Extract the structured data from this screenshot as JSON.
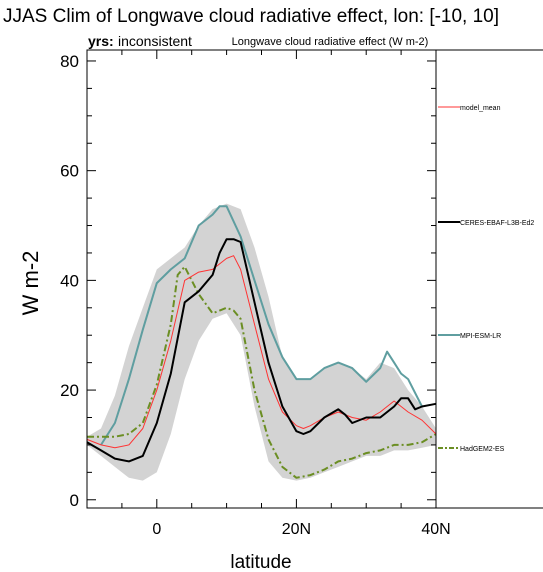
{
  "chart_data": {
    "type": "line",
    "title": "JJAS Clim of Longwave cloud radiative effect, lon: [-10, 10]",
    "subtitle_left_bold": "yrs:",
    "subtitle_left_rest": " inconsistent",
    "subtitle_center": "Longwave cloud radiative effect (W m-2)",
    "xlabel": "latitude",
    "ylabel": "W m-2",
    "xlim": [
      -10,
      40
    ],
    "ylim": [
      -1.5,
      82
    ],
    "x_ticks": [
      {
        "value": 0,
        "label": "0"
      },
      {
        "value": 20,
        "label": "20N"
      },
      {
        "value": 40,
        "label": "40N"
      }
    ],
    "y_ticks": [
      {
        "value": 0,
        "label": "0"
      },
      {
        "value": 20,
        "label": "20"
      },
      {
        "value": 40,
        "label": "40"
      },
      {
        "value": 60,
        "label": "60"
      },
      {
        "value": 80,
        "label": "80"
      }
    ],
    "grid": false,
    "legend_position": "right panel",
    "envelope": {
      "color": "#d3d3d3",
      "x": [
        -10,
        -8,
        -6,
        -4,
        -2,
        0,
        2,
        4,
        6,
        8,
        10,
        12,
        14,
        16,
        18,
        20,
        22,
        24,
        26,
        28,
        30,
        32,
        34,
        36,
        38,
        40
      ],
      "upper": [
        11.5,
        13,
        19,
        28,
        35,
        42,
        44,
        46,
        50,
        53,
        54,
        53,
        46,
        37,
        26,
        22,
        22,
        24,
        25,
        24,
        22,
        25,
        24,
        20,
        17,
        13
      ],
      "lower": [
        10,
        8,
        6,
        4,
        3.5,
        5,
        12,
        22,
        29,
        33,
        34,
        30,
        17,
        7,
        4,
        3.5,
        4,
        5,
        6,
        7,
        8,
        8,
        9,
        9,
        9.5,
        10
      ]
    },
    "series": [
      {
        "name": "model_mean",
        "color": "#ff3333",
        "dash": "solid",
        "width": 1,
        "x": [
          -10,
          -8,
          -6,
          -4,
          -2,
          0,
          2,
          4,
          6,
          8,
          10,
          11,
          12,
          14,
          16,
          18,
          20,
          21,
          22,
          24,
          26,
          28,
          30,
          32,
          34,
          36,
          38,
          40
        ],
        "y": [
          11,
          10,
          9.5,
          10,
          13,
          20,
          29,
          40,
          41.5,
          42,
          44,
          44.5,
          42,
          32,
          22,
          16,
          13.5,
          13,
          13.5,
          15,
          16,
          15,
          14.5,
          16,
          18,
          16,
          14.5,
          12
        ]
      },
      {
        "name": "CERES-EBAF-L3B-Ed2",
        "color": "#000000",
        "dash": "solid",
        "width": 2,
        "x": [
          -10,
          -8,
          -6,
          -4,
          -2,
          0,
          2,
          4,
          6,
          8,
          9,
          10,
          11,
          12,
          14,
          16,
          18,
          20,
          21,
          22,
          24,
          26,
          27,
          28,
          30,
          32,
          34,
          35,
          36,
          37,
          38,
          40
        ],
        "y": [
          10.5,
          9,
          7.5,
          7,
          8,
          14,
          23,
          36,
          38,
          41,
          45,
          47.5,
          47.5,
          47,
          36,
          25,
          17,
          12.5,
          12,
          12.5,
          15,
          16.5,
          15.5,
          14,
          15,
          15,
          17,
          18.5,
          18.5,
          16.5,
          17,
          17.5
        ]
      },
      {
        "name": "MPI-ESM-LR",
        "color": "#5f9ea0",
        "dash": "solid",
        "width": 2,
        "x": [
          -8,
          -6,
          -4,
          -2,
          0,
          2,
          4,
          6,
          8,
          9,
          10,
          12,
          14,
          16,
          18,
          20,
          22,
          24,
          26,
          28,
          30,
          32,
          33,
          34,
          35,
          36,
          38
        ],
        "y": [
          10,
          14,
          22,
          31,
          39.5,
          42,
          44,
          50,
          52,
          53.5,
          53.5,
          48,
          40,
          32,
          26,
          22,
          22,
          24,
          25,
          24,
          21.5,
          24,
          27,
          25,
          23,
          22,
          17
        ]
      },
      {
        "name": "HadGEM2-ES",
        "color": "#6b8e23",
        "dash": "dashdot",
        "width": 2,
        "x": [
          -10,
          -8,
          -6,
          -4,
          -2,
          0,
          2,
          3,
          4,
          6,
          8,
          10,
          11,
          12,
          14,
          16,
          18,
          20,
          22,
          24,
          26,
          28,
          30,
          32,
          34,
          36,
          38,
          40
        ],
        "y": [
          11.5,
          11.5,
          11.5,
          12,
          14,
          21,
          32,
          41,
          42.5,
          37.5,
          34,
          35,
          34.5,
          33,
          20,
          11,
          6,
          4,
          4.5,
          5.5,
          7,
          7.5,
          8.5,
          9,
          10,
          10,
          10.5,
          12
        ]
      }
    ]
  }
}
